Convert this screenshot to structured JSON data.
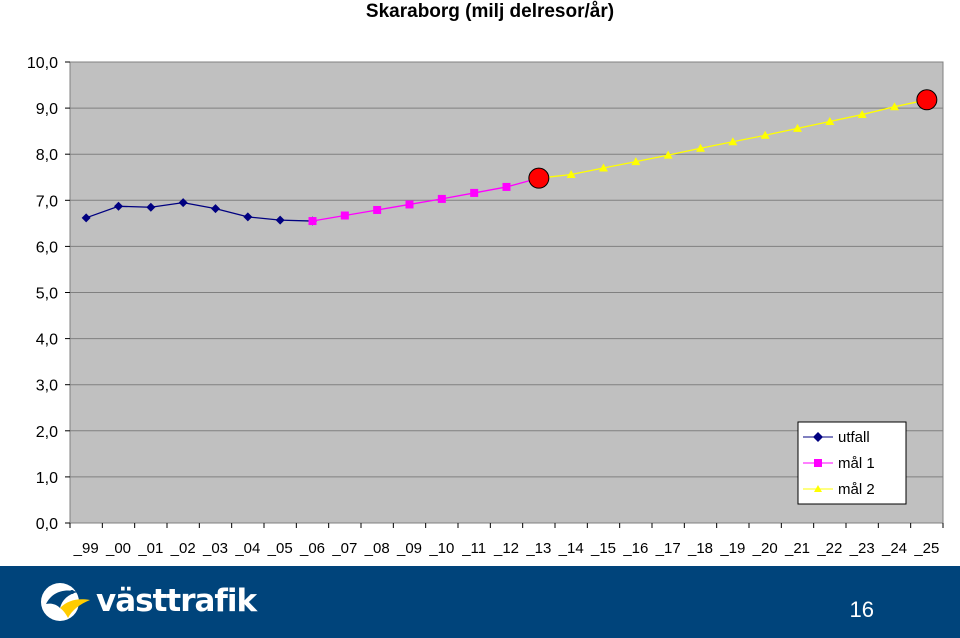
{
  "chart_data": {
    "type": "line",
    "title": "Skaraborg (milj delresor/år)",
    "xlabel": "",
    "ylabel": "",
    "ylim": [
      0,
      10
    ],
    "y_ticks": [
      "0,0",
      "1,0",
      "2,0",
      "3,0",
      "4,0",
      "5,0",
      "6,0",
      "7,0",
      "8,0",
      "9,0",
      "10,0"
    ],
    "categories": [
      "_99",
      "_00",
      "_01",
      "_02",
      "_03",
      "_04",
      "_05",
      "_06",
      "_07",
      "_08",
      "_09",
      "_10",
      "_11",
      "_12",
      "_13",
      "_14",
      "_15",
      "_16",
      "_17",
      "_18",
      "_19",
      "_20",
      "_21",
      "_22",
      "_23",
      "_24",
      "_25"
    ],
    "grid": true,
    "legend_position": "bottom-right",
    "series": [
      {
        "name": "utfall",
        "color": "#000080",
        "marker": "diamond",
        "values": [
          6.62,
          6.87,
          6.85,
          6.95,
          6.82,
          6.64,
          6.57,
          6.55,
          null,
          null,
          null,
          null,
          null,
          null,
          null,
          null,
          null,
          null,
          null,
          null,
          null,
          null,
          null,
          null,
          null,
          null,
          null
        ]
      },
      {
        "name": "mål 1",
        "color": "#ff00ff",
        "marker": "square",
        "values": [
          null,
          null,
          null,
          null,
          null,
          null,
          null,
          6.55,
          6.67,
          6.79,
          6.91,
          7.03,
          7.16,
          7.29,
          7.48,
          null,
          null,
          null,
          null,
          null,
          null,
          null,
          null,
          null,
          null,
          null,
          null
        ]
      },
      {
        "name": "mål 2",
        "color": "#ffff00",
        "marker": "triangle",
        "values": [
          null,
          null,
          null,
          null,
          null,
          null,
          null,
          null,
          null,
          null,
          null,
          null,
          null,
          null,
          7.48,
          7.56,
          7.7,
          7.84,
          7.98,
          8.13,
          8.27,
          8.41,
          8.56,
          8.71,
          8.86,
          9.03,
          9.18
        ]
      }
    ],
    "highlight_points": [
      {
        "category": "_13",
        "value": 7.48,
        "color": "#ff0000"
      },
      {
        "category": "_25",
        "value": 9.18,
        "color": "#ff0000"
      }
    ]
  },
  "footer": {
    "logo_text": "västtrafik",
    "page_number": "16",
    "background": "#00447b"
  }
}
